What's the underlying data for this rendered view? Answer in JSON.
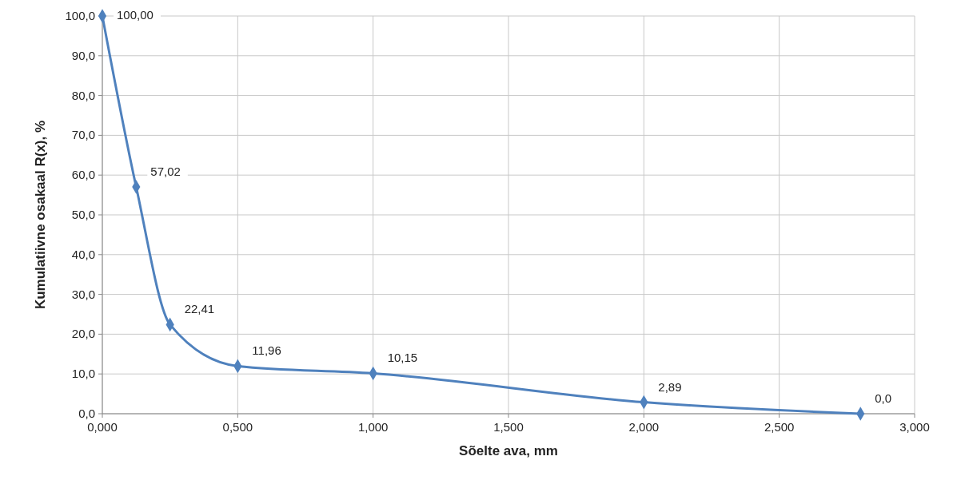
{
  "chart_data": {
    "type": "line",
    "xlabel": "Sõelte ava, mm",
    "ylabel": "Kumulatiivne osakaal R(x), %",
    "x": [
      0,
      0.125,
      0.25,
      0.5,
      1,
      2,
      2.8
    ],
    "series": [
      {
        "color": "#4f81bd",
        "values": [
          100,
          57.02,
          22.41,
          11.96,
          10.15,
          2.89,
          0
        ],
        "value_labels": [
          "100,00",
          "57,02",
          "22,41",
          "11,96",
          "10,15",
          "2,89",
          "0,0"
        ]
      }
    ],
    "xlim": [
      0,
      3
    ],
    "xticks": [
      {
        "value": 0,
        "label": "0,000"
      },
      {
        "value": 0.5,
        "label": "0,500"
      },
      {
        "value": 1,
        "label": "1,000"
      },
      {
        "value": 1.5,
        "label": "1,500"
      },
      {
        "value": 2,
        "label": "2,000"
      },
      {
        "value": 2.5,
        "label": "2,500"
      },
      {
        "value": 3,
        "label": "3,000"
      }
    ],
    "ylim": [
      0,
      100
    ],
    "yticks": [
      {
        "value": 0,
        "label": "0,0"
      },
      {
        "value": 10,
        "label": "10,0"
      },
      {
        "value": 20,
        "label": "20,0"
      },
      {
        "value": 30,
        "label": "30,0"
      },
      {
        "value": 40,
        "label": "40,0"
      },
      {
        "value": 50,
        "label": "50,0"
      },
      {
        "value": 60,
        "label": "60,0"
      },
      {
        "value": 70,
        "label": "70,0"
      },
      {
        "value": 80,
        "label": "80,0"
      },
      {
        "value": 90,
        "label": "90,0"
      },
      {
        "value": 100,
        "label": "100,0"
      }
    ],
    "grid": true,
    "marker": "diamond",
    "line_style": "solid"
  }
}
